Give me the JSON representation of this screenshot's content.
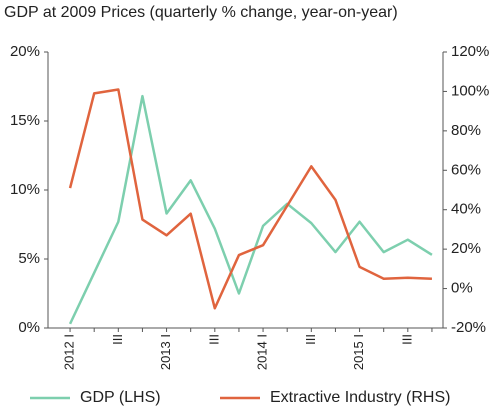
{
  "chart_data": {
    "type": "line",
    "title": "GDP at 2009 Prices (quarterly % change, year-on-year)",
    "categories": [
      "2012 I",
      null,
      "III",
      null,
      "2013 I",
      null,
      "III",
      null,
      "2014 I",
      null,
      "III",
      null,
      "2015 I",
      null,
      "III",
      null
    ],
    "series": [
      {
        "name": "GDP (LHS)",
        "color": "#7dcfae",
        "values": [
          0.3,
          4.0,
          7.7,
          16.8,
          8.3,
          10.7,
          7.2,
          2.5,
          7.4,
          9.0,
          7.6,
          5.5,
          7.7,
          5.5,
          6.4,
          5.3
        ]
      },
      {
        "name": "Extractive Industry (RHS)",
        "color": "#e0643e",
        "axis": "y2",
        "values": [
          51,
          99,
          101,
          35,
          27,
          38,
          -10,
          17,
          22,
          42,
          62,
          45,
          11,
          5,
          5.5,
          5
        ]
      }
    ],
    "ylim": [
      0,
      20
    ],
    "yticks": [
      {
        "value": 0,
        "label": "0%"
      },
      {
        "value": 5,
        "label": "5%"
      },
      {
        "value": 10,
        "label": "10%"
      },
      {
        "value": 15,
        "label": "15%"
      },
      {
        "value": 20,
        "label": "20%"
      }
    ],
    "y2lim": [
      -20,
      120
    ],
    "y2ticks": [
      {
        "value": -20,
        "label": "-20%"
      },
      {
        "value": 0,
        "label": "0%"
      },
      {
        "value": 20,
        "label": "20%"
      },
      {
        "value": 40,
        "label": "40%"
      },
      {
        "value": 60,
        "label": "60%"
      },
      {
        "value": 80,
        "label": "80%"
      },
      {
        "value": 100,
        "label": "100%"
      },
      {
        "value": 120,
        "label": "120%"
      }
    ],
    "legend": "bottom"
  }
}
